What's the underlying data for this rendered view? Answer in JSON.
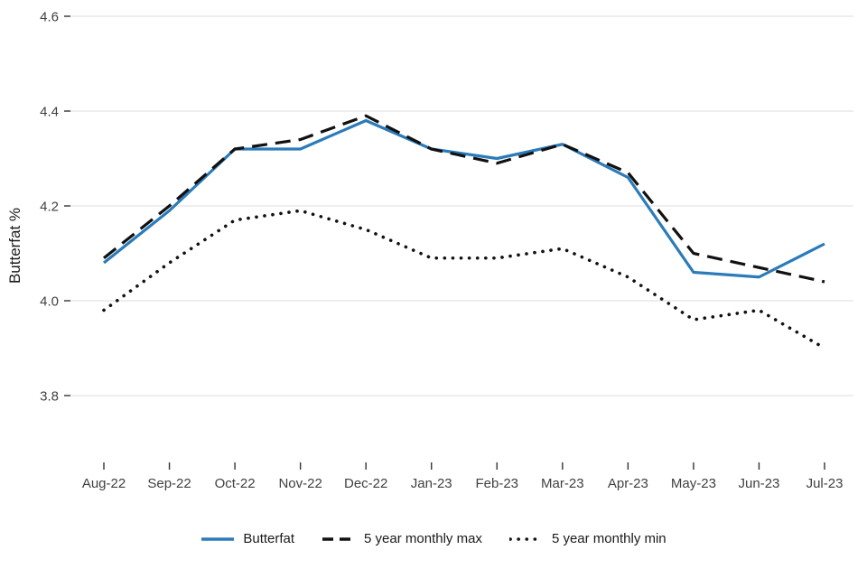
{
  "chart_data": {
    "type": "line",
    "title": "",
    "xlabel": "",
    "ylabel": "Butterfat %",
    "categories": [
      "Aug-22",
      "Sep-22",
      "Oct-22",
      "Nov-22",
      "Dec-22",
      "Jan-23",
      "Feb-23",
      "Mar-23",
      "Apr-23",
      "May-23",
      "Jun-23",
      "Jul-23"
    ],
    "ylim": [
      3.8,
      4.6
    ],
    "yticks": [
      3.8,
      4.0,
      4.2,
      4.4,
      4.6
    ],
    "grid": "horizontal",
    "legend_position": "bottom",
    "series": [
      {
        "name": "Butterfat",
        "style": "solid",
        "color": "#2b7bba",
        "values": [
          4.08,
          4.19,
          4.32,
          4.32,
          4.38,
          4.32,
          4.3,
          4.33,
          4.26,
          4.06,
          4.05,
          4.12
        ]
      },
      {
        "name": "5 year monthly max",
        "style": "dashed",
        "color": "#111111",
        "values": [
          4.09,
          4.2,
          4.32,
          4.34,
          4.39,
          4.32,
          4.29,
          4.33,
          4.27,
          4.1,
          4.07,
          4.04
        ]
      },
      {
        "name": "5 year monthly min",
        "style": "dotted",
        "color": "#111111",
        "values": [
          3.98,
          4.08,
          4.17,
          4.19,
          4.15,
          4.09,
          4.09,
          4.11,
          4.05,
          3.96,
          3.98,
          3.9
        ]
      }
    ]
  },
  "colors": {
    "grid": "#e4e4e4",
    "tick": "#333333",
    "tick_text": "#404040"
  }
}
